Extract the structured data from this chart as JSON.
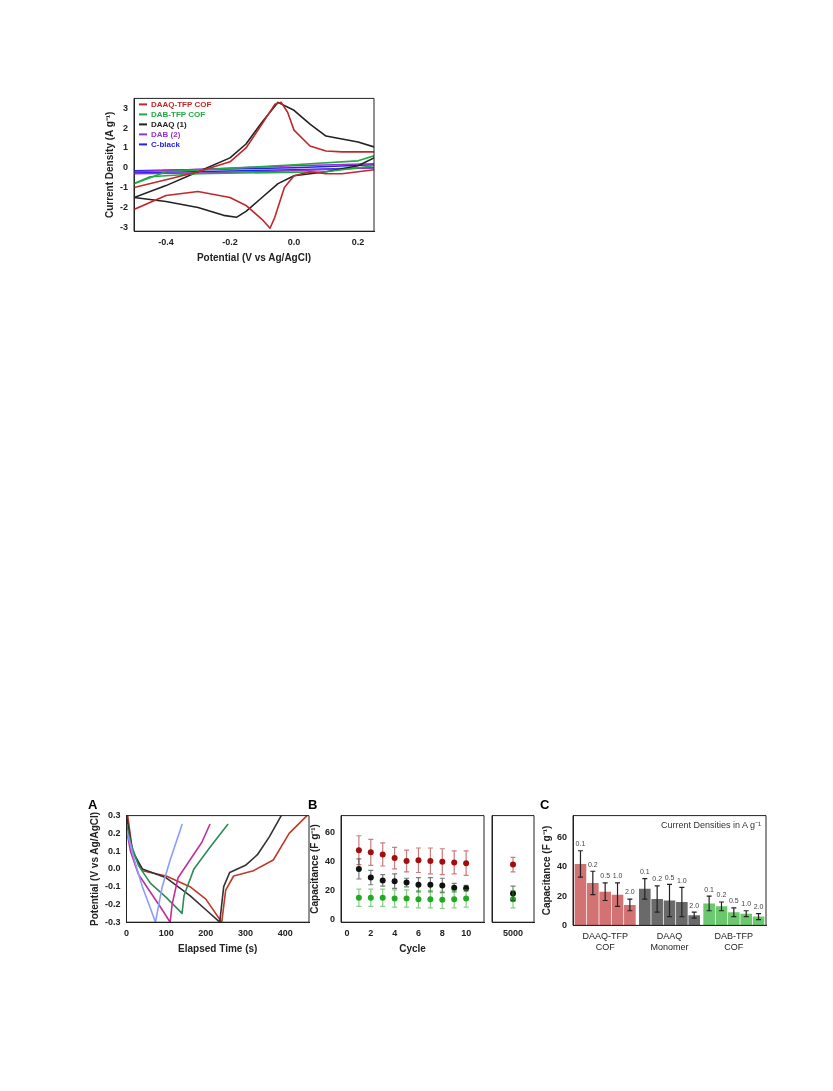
{
  "chart_data": [
    {
      "type": "line",
      "xlabel": "Potential (V vs Ag/AgCl)",
      "ylabel": "Current Density (A g⁻¹)",
      "xlim": [
        -0.5,
        0.25
      ],
      "xticks": [
        -0.4,
        -0.2,
        {
          "value": 0,
          "label": "0.0"
        },
        0.2
      ],
      "ylim": [
        -3.2,
        3.5
      ],
      "yticks": [
        -3,
        -2,
        -1,
        0,
        1,
        2,
        3
      ],
      "legend": "top left",
      "marker": "none",
      "series": [
        {
          "name": "DAAQ-TFP COF",
          "color": "#c0282a",
          "x": [
            -0.5,
            -0.4,
            -0.3,
            -0.2,
            -0.15,
            -0.1,
            -0.06,
            -0.04,
            -0.02,
            0,
            0.05,
            0.1,
            0.15,
            0.2,
            0.25
          ],
          "values": [
            -1.0,
            -0.6,
            -0.2,
            0.3,
            1.0,
            2.2,
            3.2,
            3.3,
            2.8,
            1.9,
            1.1,
            0.85,
            0.8,
            0.8,
            0.8
          ]
        },
        {
          "color": "#c0282a",
          "x": [
            -0.5,
            -0.4,
            -0.3,
            -0.2,
            -0.15,
            -0.1,
            -0.075,
            -0.06,
            -0.03,
            0,
            0.05,
            0.1,
            0.15,
            0.2,
            0.25
          ],
          "values": [
            -2.1,
            -1.4,
            -1.2,
            -1.5,
            -1.9,
            -2.6,
            -3.05,
            -2.5,
            -1.0,
            -0.4,
            -0.2,
            -0.3,
            -0.3,
            -0.2,
            -0.1
          ]
        },
        {
          "name": "DAB-TFP COF",
          "color": "#22aa44",
          "x": [
            -0.5,
            -0.45,
            -0.4,
            0,
            0.2,
            0.25
          ],
          "values": [
            -0.8,
            -0.5,
            -0.2,
            0.15,
            0.35,
            0.6
          ]
        },
        {
          "color": "#22aa44",
          "x": [
            -0.5,
            -0.45,
            -0.3,
            0.1,
            0.25
          ],
          "values": [
            -0.8,
            -0.45,
            -0.3,
            -0.2,
            0.1
          ]
        },
        {
          "name": "DAAQ (1)",
          "color": "#222222",
          "x": [
            -0.5,
            -0.4,
            -0.3,
            -0.2,
            -0.15,
            -0.1,
            -0.05,
            0,
            0.05,
            0.1,
            0.15,
            0.2,
            0.25
          ],
          "values": [
            -1.5,
            -0.9,
            -0.2,
            0.5,
            1.2,
            2.3,
            3.3,
            2.9,
            2.2,
            1.6,
            1.45,
            1.3,
            1.05
          ]
        },
        {
          "color": "#222222",
          "x": [
            -0.5,
            -0.4,
            -0.3,
            -0.22,
            -0.18,
            -0.15,
            -0.1,
            -0.05,
            0,
            0.1,
            0.2,
            0.25
          ],
          "values": [
            -1.5,
            -1.7,
            -2.0,
            -2.4,
            -2.5,
            -2.2,
            -1.5,
            -0.8,
            -0.4,
            -0.2,
            0.1,
            0.5
          ]
        },
        {
          "name": "DAB (2)",
          "color": "#9933cc",
          "x": [
            -0.5,
            -0.25,
            0,
            0.25
          ],
          "values": [
            -0.2,
            -0.05,
            0.1,
            0.2
          ]
        },
        {
          "color": "#9933cc",
          "x": [
            -0.5,
            -0.25,
            0,
            0.25
          ],
          "values": [
            -0.3,
            -0.25,
            -0.15,
            0.0
          ]
        },
        {
          "name": "C-black",
          "color": "#2222ee",
          "x": [
            -0.5,
            0,
            0.25
          ],
          "values": [
            -0.15,
            0.0,
            0.15
          ]
        },
        {
          "color": "#2222ee",
          "x": [
            -0.5,
            0,
            0.25
          ],
          "values": [
            -0.25,
            -0.1,
            0.0
          ]
        }
      ]
    },
    {
      "type": "line",
      "title": "A",
      "xlabel": "Elapsed Time (s)",
      "ylabel": "Potential (V vs Ag/AgCl)",
      "xlim": [
        0,
        460
      ],
      "xticks": [
        0,
        100,
        200,
        300,
        400
      ],
      "ylim": [
        -0.3,
        0.3
      ],
      "yticks": [
        -0.3,
        -0.2,
        -0.1,
        {
          "value": 0,
          "label": "0.0"
        },
        0.1,
        0.2,
        0.3
      ],
      "marker": "none",
      "series": [
        {
          "color": "#8a9cff",
          "x": [
            0,
            20,
            40,
            60,
            73,
            90,
            110,
            140
          ],
          "values": [
            0.22,
            0.05,
            -0.1,
            -0.22,
            -0.3,
            -0.1,
            0.05,
            0.25
          ]
        },
        {
          "color": "#c0309a",
          "x": [
            0,
            10,
            30,
            60,
            90,
            110,
            115,
            130,
            160,
            190,
            210
          ],
          "values": [
            0.22,
            0.1,
            -0.03,
            -0.13,
            -0.23,
            -0.3,
            -0.2,
            -0.05,
            0.05,
            0.15,
            0.25
          ]
        },
        {
          "color": "#2e8b57",
          "x": [
            0,
            10,
            30,
            60,
            100,
            140,
            145,
            170,
            210,
            255
          ],
          "values": [
            0.25,
            0.15,
            0.02,
            -0.08,
            -0.16,
            -0.25,
            -0.15,
            0.0,
            0.12,
            0.25
          ]
        },
        {
          "color": "#333333",
          "x": [
            0,
            15,
            40,
            100,
            160,
            200,
            235,
            245,
            260,
            300,
            330,
            360,
            390
          ],
          "values": [
            0.3,
            0.1,
            0.0,
            -0.05,
            -0.15,
            -0.23,
            -0.3,
            -0.1,
            -0.02,
            0.02,
            0.08,
            0.18,
            0.3
          ]
        },
        {
          "color": "#c0392b",
          "x": [
            3,
            15,
            40,
            100,
            160,
            200,
            240,
            250,
            270,
            320,
            370,
            410,
            455
          ],
          "values": [
            0.3,
            0.1,
            -0.01,
            -0.04,
            -0.1,
            -0.17,
            -0.3,
            -0.12,
            -0.04,
            -0.01,
            0.05,
            0.2,
            0.3
          ]
        }
      ]
    },
    {
      "type": "scatter",
      "title": "B",
      "xlabel": "Cycle",
      "ylabel": "Capacitance (F g⁻¹)",
      "xlim": [
        -0.5,
        11.5
      ],
      "xticks": [
        0,
        2,
        4,
        6,
        8,
        10
      ],
      "ylim": [
        -2,
        72
      ],
      "yticks": [
        0,
        20,
        40,
        60
      ],
      "marker": "circle",
      "series": [
        {
          "color": "#a01010",
          "x": [
            1,
            2,
            3,
            4,
            5,
            6,
            7,
            8,
            9,
            10
          ],
          "values": [
            48,
            46.5,
            45,
            42.5,
            40.5,
            41,
            40.5,
            40,
            39.5,
            39
          ],
          "errors": [
            10,
            9,
            8,
            7.5,
            7.5,
            8.5,
            9,
            9,
            8,
            8.5
          ]
        },
        {
          "color": "#111111",
          "x": [
            1,
            2,
            3,
            4,
            5,
            6,
            7,
            8,
            9,
            10
          ],
          "values": [
            35,
            29,
            27,
            26.5,
            25.5,
            24,
            24,
            23.5,
            22,
            21.5
          ],
          "errors": [
            7,
            5,
            4,
            5,
            3,
            5,
            5,
            5,
            3,
            2
          ]
        },
        {
          "color": "#22aa22",
          "x": [
            1,
            2,
            3,
            4,
            5,
            6,
            7,
            8,
            9,
            10
          ],
          "values": [
            15,
            15,
            15,
            14.5,
            14.5,
            14,
            14,
            13.5,
            14,
            14.5
          ],
          "errors": [
            6,
            6,
            6,
            6,
            6,
            6,
            6,
            6,
            6,
            6
          ]
        }
      ]
    },
    {
      "type": "scatter",
      "categories": [
        "5000"
      ],
      "ylim": [
        -2,
        72
      ],
      "tick_labels": "x",
      "marker": "circle",
      "series": [
        {
          "color": "#a01010",
          "values": [
            38
          ],
          "errors": [
            5
          ]
        },
        {
          "color": "#111111",
          "values": [
            18
          ],
          "errors": [
            5
          ]
        },
        {
          "color": "#22aa22",
          "values": [
            14
          ],
          "errors": [
            6
          ]
        }
      ]
    },
    {
      "type": "bar",
      "title": "C",
      "ylabel": "Capacitance (F g⁻¹)",
      "categories": [
        "DAAQ-TFP COF",
        "DAAQ Monomer",
        "DAB-TFP COF"
      ],
      "ylim": [
        0,
        75
      ],
      "yticks": [
        0,
        20,
        40,
        60
      ],
      "annotations": [
        "Current Densities in A g⁻¹"
      ],
      "series": [
        {
          "name": "0.1",
          "colors": [
            "#d27272",
            "#6a6a6a",
            "#6cc86c"
          ],
          "values": [
            42,
            25,
            15
          ],
          "errors": [
            9,
            7,
            5
          ]
        },
        {
          "name": "0.2",
          "colors": [
            "#d27272",
            "#6a6a6a",
            "#6cc86c"
          ],
          "values": [
            29,
            18,
            13
          ],
          "errors": [
            8,
            9,
            3
          ]
        },
        {
          "name": "0.5",
          "colors": [
            "#d27272",
            "#6a6a6a",
            "#6cc86c"
          ],
          "values": [
            23,
            17,
            9
          ],
          "errors": [
            6,
            11,
            3
          ]
        },
        {
          "name": "1.0",
          "colors": [
            "#d27272",
            "#6a6a6a",
            "#6cc86c"
          ],
          "values": [
            21,
            16,
            8
          ],
          "errors": [
            8,
            10,
            2
          ]
        },
        {
          "name": "2.0",
          "colors": [
            "#d27272",
            "#6a6a6a",
            "#6cc86c"
          ],
          "values": [
            14,
            7,
            6
          ],
          "errors": [
            4,
            2,
            2
          ]
        }
      ]
    }
  ]
}
